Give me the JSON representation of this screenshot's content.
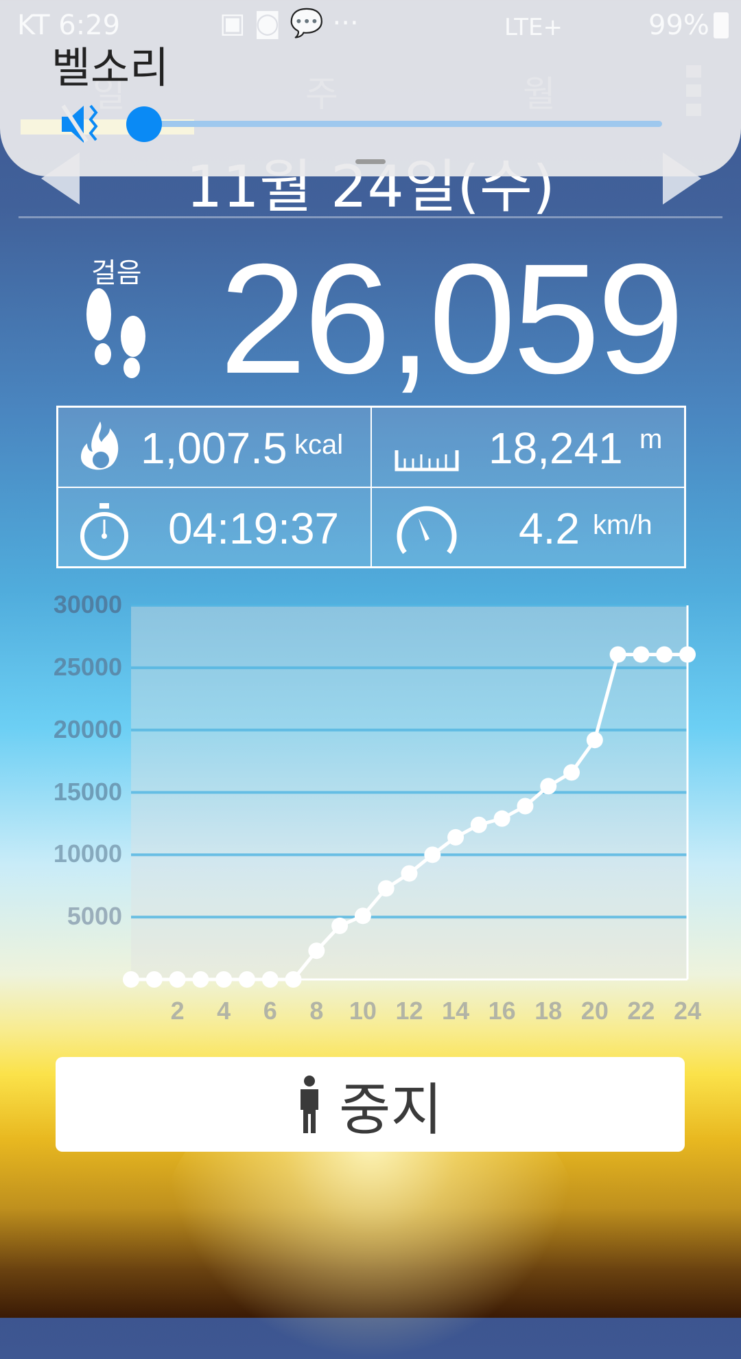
{
  "status_bar": {
    "carrier_time": "KT 6:29",
    "battery": "99%",
    "network": "LTE+"
  },
  "tabs": [
    {
      "label": "일"
    },
    {
      "label": "주"
    },
    {
      "label": "월"
    }
  ],
  "volume_panel": {
    "title": "벨소리",
    "level_percent": 0,
    "muted": true,
    "accent": "#0a8af5"
  },
  "date": {
    "label": "11월 24일(수)"
  },
  "steps": {
    "label": "걸음",
    "value": "26,059"
  },
  "stats": {
    "calories": {
      "value": "1,007.5",
      "unit": "kcal",
      "icon": "fire-icon"
    },
    "distance": {
      "value": "18,241",
      "unit": "m",
      "icon": "ruler-icon"
    },
    "duration": {
      "value": "04:19:37",
      "icon": "stopwatch-icon"
    },
    "speed": {
      "value": "4.2",
      "unit": "km/h",
      "icon": "speedometer-icon"
    }
  },
  "chart_data": {
    "type": "line",
    "x": [
      0,
      1,
      2,
      3,
      4,
      5,
      6,
      7,
      8,
      9,
      10,
      11,
      12,
      13,
      14,
      15,
      16,
      17,
      18,
      19,
      20,
      21,
      22,
      23,
      24
    ],
    "values": [
      0,
      0,
      0,
      0,
      0,
      0,
      0,
      0,
      2300,
      4300,
      5100,
      7300,
      8500,
      10000,
      11400,
      12400,
      12900,
      13900,
      15500,
      16600,
      19200,
      26059,
      26059,
      26059,
      26059
    ],
    "xlim": [
      0,
      24
    ],
    "ylim": [
      0,
      30000
    ],
    "yticks": [
      "30000",
      "25000",
      "20000",
      "15000",
      "10000",
      "5000"
    ],
    "xticks": [
      "2",
      "4",
      "6",
      "8",
      "10",
      "12",
      "14",
      "16",
      "18",
      "20",
      "22",
      "24"
    ],
    "grid": true
  },
  "stop_button": {
    "label": "중지",
    "icon": "person-icon"
  }
}
